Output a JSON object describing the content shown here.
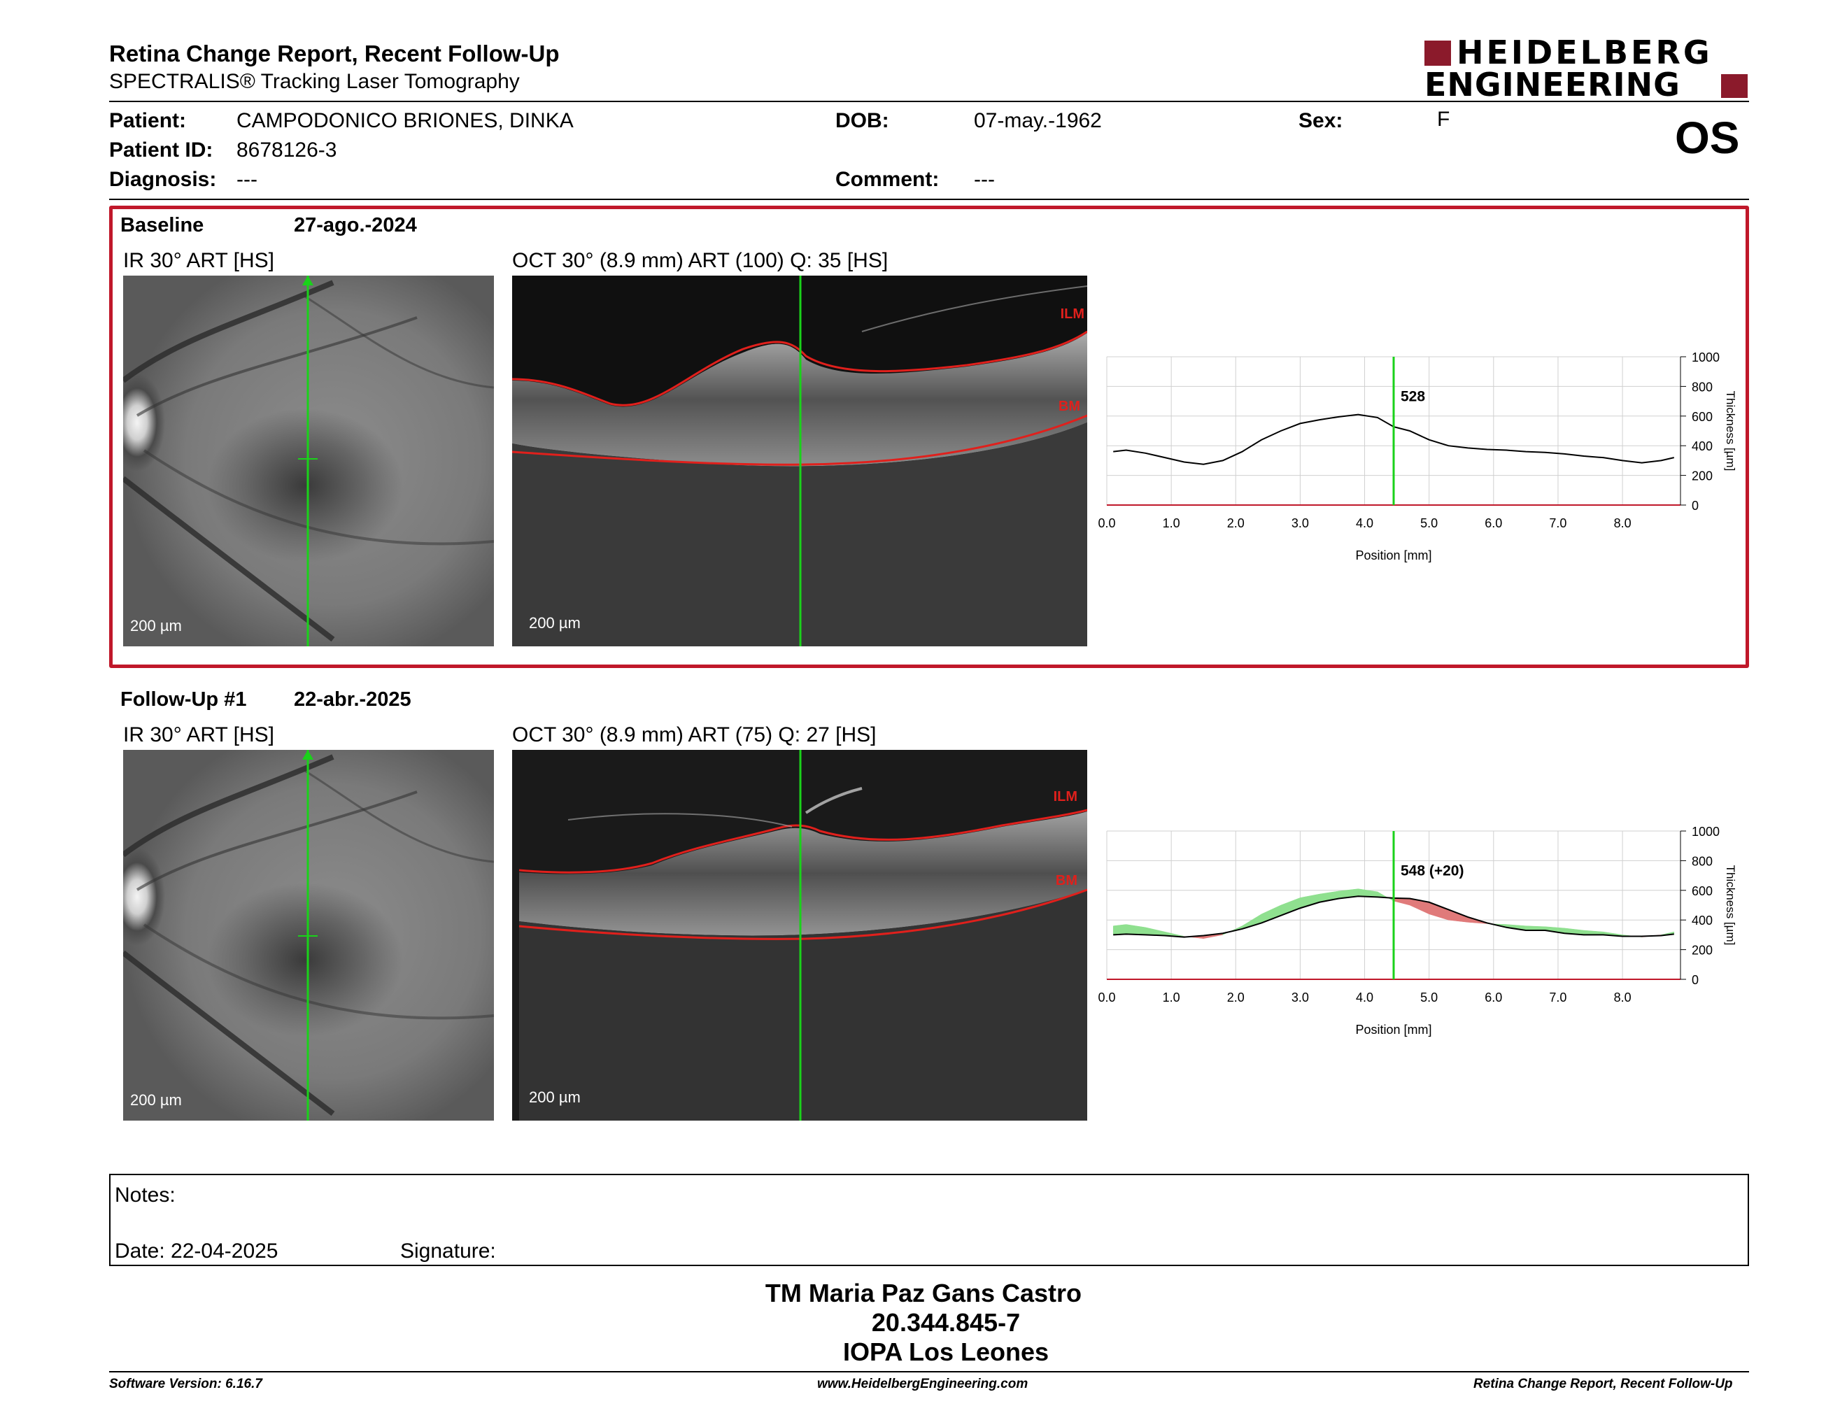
{
  "header": {
    "title": "Retina Change Report, Recent Follow-Up",
    "subtitle": "SPECTRALIS® Tracking Laser Tomography",
    "logo_line1": "HEIDELBERG",
    "logo_line2": "ENGINEERING",
    "eye": "OS"
  },
  "patient": {
    "name_label": "Patient:",
    "name": "CAMPODONICO BRIONES, DINKA",
    "id_label": "Patient ID:",
    "id": "8678126-3",
    "diag_label": "Diagnosis:",
    "diagnosis": "---",
    "dob_label": "DOB:",
    "dob": "07-may.-1962",
    "comment_label": "Comment:",
    "comment": "---",
    "sex_label": "Sex:",
    "sex": "F"
  },
  "baseline": {
    "label": "Baseline",
    "date": "27-ago.-2024",
    "ir_caption": "IR 30° ART [HS]",
    "oct_caption": "OCT 30° (8.9 mm) ART (100) Q: 35 [HS]",
    "scale_ir": "200 µm",
    "scale_oct": "200 µm",
    "ilm": "ILM",
    "bm": "BM"
  },
  "followup": {
    "label": "Follow-Up #1",
    "date": "22-abr.-2025",
    "ir_caption": "IR 30° ART [HS]",
    "oct_caption": "OCT 30° (8.9 mm) ART (75) Q: 27 [HS]",
    "scale_ir": "200 µm",
    "scale_oct": "200 µm",
    "ilm": "ILM",
    "bm": "BM"
  },
  "chart_data": [
    {
      "type": "line",
      "xlabel": "Position [mm]",
      "ylabel": "Thickness [µm]",
      "xlim": [
        0,
        8.9
      ],
      "ylim": [
        0,
        1000
      ],
      "xticks": [
        "0.0",
        "1.0",
        "2.0",
        "3.0",
        "4.0",
        "5.0",
        "6.0",
        "7.0",
        "8.0"
      ],
      "yticks": [
        "0",
        "200",
        "400",
        "600",
        "800",
        "1000"
      ],
      "marker_x": 4.45,
      "marker_label": "528",
      "series": [
        {
          "x": [
            0.1,
            0.3,
            0.6,
            0.9,
            1.2,
            1.5,
            1.8,
            2.1,
            2.4,
            2.7,
            3.0,
            3.3,
            3.6,
            3.9,
            4.2,
            4.45,
            4.7,
            5.0,
            5.3,
            5.6,
            5.9,
            6.2,
            6.5,
            6.8,
            7.1,
            7.4,
            7.7,
            8.0,
            8.3,
            8.6,
            8.8
          ],
          "y": [
            360,
            370,
            350,
            320,
            290,
            275,
            300,
            360,
            440,
            500,
            550,
            575,
            595,
            610,
            590,
            528,
            500,
            440,
            400,
            385,
            375,
            370,
            360,
            355,
            345,
            330,
            320,
            300,
            285,
            300,
            320
          ]
        }
      ]
    },
    {
      "type": "area",
      "xlabel": "Position [mm]",
      "ylabel": "Thickness [µm]",
      "xlim": [
        0,
        8.9
      ],
      "ylim": [
        0,
        1000
      ],
      "xticks": [
        "0.0",
        "1.0",
        "2.0",
        "3.0",
        "4.0",
        "5.0",
        "6.0",
        "7.0",
        "8.0"
      ],
      "yticks": [
        "0",
        "200",
        "400",
        "600",
        "800",
        "1000"
      ],
      "marker_x": 4.45,
      "marker_label": "548 (+20)",
      "colors": {
        "thicker": "#8fe08f",
        "thinner": "#e07a7a"
      },
      "series": [
        {
          "x": [
            0.1,
            0.3,
            0.6,
            0.9,
            1.2,
            1.5,
            1.8,
            2.1,
            2.4,
            2.7,
            3.0,
            3.3,
            3.6,
            3.9,
            4.2,
            4.45,
            4.7,
            5.0,
            5.3,
            5.6,
            5.9,
            6.2,
            6.5,
            6.8,
            7.1,
            7.4,
            7.7,
            8.0,
            8.3,
            8.6,
            8.8
          ],
          "y": [
            360,
            370,
            350,
            320,
            290,
            275,
            300,
            360,
            440,
            500,
            550,
            575,
            595,
            610,
            590,
            528,
            500,
            440,
            400,
            385,
            375,
            370,
            360,
            355,
            345,
            330,
            320,
            300,
            285,
            300,
            320
          ]
        },
        {
          "x": [
            0.1,
            0.3,
            0.6,
            0.9,
            1.2,
            1.5,
            1.8,
            2.1,
            2.4,
            2.7,
            3.0,
            3.3,
            3.6,
            3.9,
            4.2,
            4.45,
            4.7,
            5.0,
            5.3,
            5.6,
            5.9,
            6.2,
            6.5,
            6.8,
            7.1,
            7.4,
            7.7,
            8.0,
            8.3,
            8.6,
            8.8
          ],
          "y": [
            300,
            305,
            300,
            295,
            285,
            295,
            310,
            340,
            380,
            430,
            480,
            520,
            545,
            560,
            555,
            548,
            545,
            520,
            470,
            420,
            380,
            350,
            330,
            330,
            310,
            300,
            300,
            290,
            290,
            295,
            305
          ]
        }
      ]
    }
  ],
  "notes": {
    "label": "Notes:",
    "date_label": "Date: 22-04-2025",
    "signature_label": "Signature:"
  },
  "signature": {
    "name": "TM Maria Paz Gans Castro",
    "id": "20.344.845-7",
    "org": "IOPA Los Leones"
  },
  "footer": {
    "version": "Software Version: 6.16.7",
    "url": "www.HeidelbergEngineering.com",
    "report": "Retina Change Report, Recent Follow-Up"
  }
}
